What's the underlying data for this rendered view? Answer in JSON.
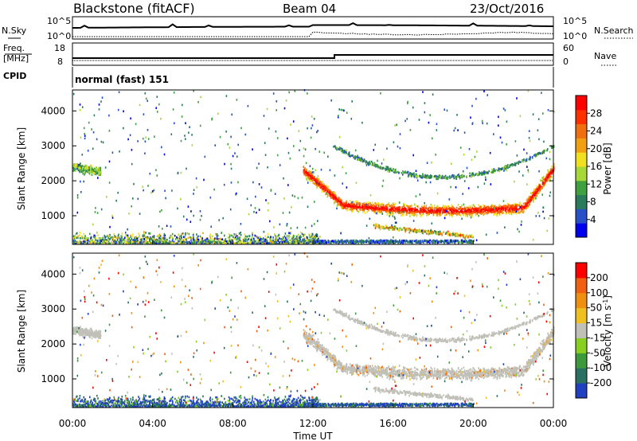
{
  "header": {
    "radar": "Blackstone (fitACF)",
    "beam": "Beam 04",
    "date": "23/Oct/2016"
  },
  "sky_panel": {
    "left_label": "N.Sky",
    "right_label": "N.Search",
    "left_ticks": [
      "10^5",
      "10^0"
    ],
    "right_ticks": [
      "10^5",
      "10^0"
    ]
  },
  "freq_panel": {
    "left_label_1": "Freq.",
    "left_label_2": "[MHz]",
    "right_label": "Nave",
    "left_ticks": [
      "18",
      "8"
    ],
    "right_ticks": [
      "60",
      "0"
    ]
  },
  "cpid": {
    "label": "CPID",
    "value": "normal (fast) 151"
  },
  "chart_data": [
    {
      "type": "heatmap",
      "title": "",
      "ylabel": "Slant Range [km]",
      "ylim": [
        180,
        4600
      ],
      "yticks": [
        "1000",
        "2000",
        "3000",
        "4000"
      ],
      "xticks": [
        "00:00",
        "04:00",
        "08:00",
        "12:00",
        "16:00",
        "20:00",
        "00:00"
      ],
      "colorbar": {
        "label": "Power [dB]",
        "ticks": [
          "4",
          "8",
          "12",
          "16",
          "20",
          "24",
          "28"
        ],
        "colors": [
          "#0000ee",
          "#2850c8",
          "#2a7a5c",
          "#3ea03e",
          "#a8d838",
          "#f0e020",
          "#f0a010",
          "#f07010",
          "#ff3000",
          "#ff0000"
        ]
      }
    },
    {
      "type": "heatmap",
      "title": "",
      "ylabel": "Slant Range [km]",
      "ylim": [
        180,
        4600
      ],
      "yticks": [
        "1000",
        "2000",
        "3000",
        "4000"
      ],
      "xticks": [
        "00:00",
        "04:00",
        "08:00",
        "12:00",
        "16:00",
        "20:00",
        "00:00"
      ],
      "xlabel": "Time UT",
      "colorbar": {
        "label": "Velocity [m s",
        "label_sup": "-1",
        "label_end": "]",
        "ticks": [
          "200",
          "100",
          "50",
          "15",
          "-15",
          "-50",
          "-100",
          "-200"
        ],
        "colors": [
          "#2040c0",
          "#2a7060",
          "#3c9a3c",
          "#88d020",
          "#c0c0b8",
          "#f0c020",
          "#f09010",
          "#f06010",
          "#ff0000"
        ]
      }
    }
  ]
}
